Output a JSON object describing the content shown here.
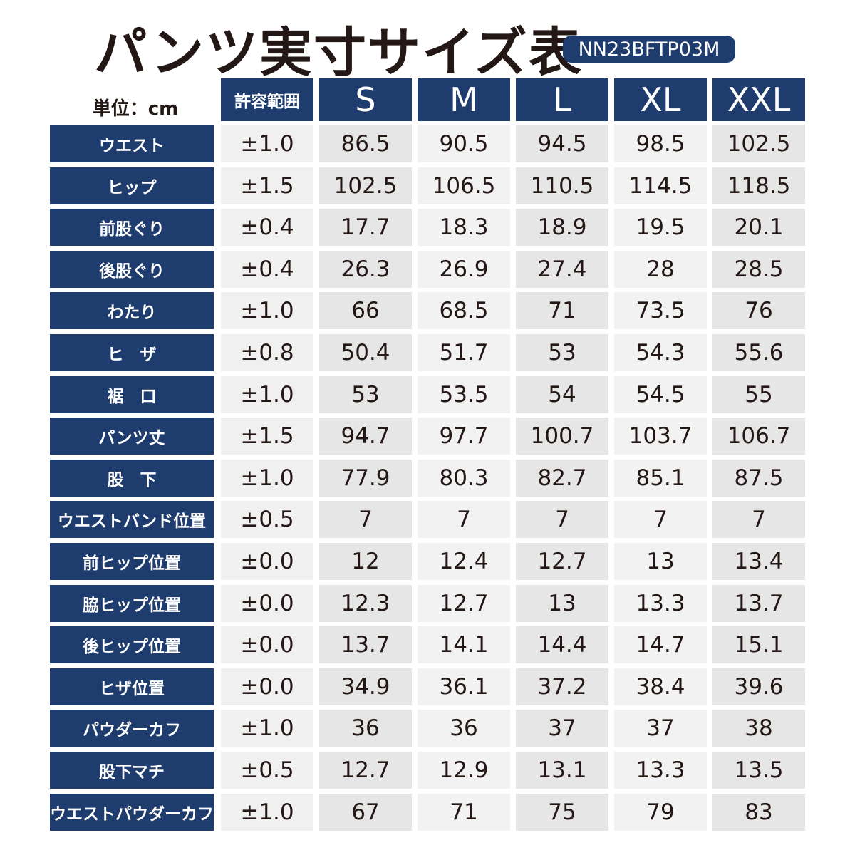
{
  "header": {
    "title": "パンツ実寸サイズ表",
    "code": "NN23BFTP03M",
    "unit": "単位：cm"
  },
  "table": {
    "tolerance_header": "許容範囲",
    "sizes": [
      "S",
      "M",
      "L",
      "XL",
      "XXL"
    ],
    "rows": [
      {
        "label": "ウエスト",
        "tolerance": "±1.0",
        "values": [
          "86.5",
          "90.5",
          "94.5",
          "98.5",
          "102.5"
        ]
      },
      {
        "label": "ヒップ",
        "tolerance": "±1.5",
        "values": [
          "102.5",
          "106.5",
          "110.5",
          "114.5",
          "118.5"
        ]
      },
      {
        "label": "前股ぐり",
        "tolerance": "±0.4",
        "values": [
          "17.7",
          "18.3",
          "18.9",
          "19.5",
          "20.1"
        ]
      },
      {
        "label": "後股ぐり",
        "tolerance": "±0.4",
        "values": [
          "26.3",
          "26.9",
          "27.4",
          "28",
          "28.5"
        ]
      },
      {
        "label": "わたり",
        "tolerance": "±1.0",
        "values": [
          "66",
          "68.5",
          "71",
          "73.5",
          "76"
        ]
      },
      {
        "label": "ヒ　ザ",
        "tolerance": "±0.8",
        "values": [
          "50.4",
          "51.7",
          "53",
          "54.3",
          "55.6"
        ]
      },
      {
        "label": "裾　口",
        "tolerance": "±1.0",
        "values": [
          "53",
          "53.5",
          "54",
          "54.5",
          "55"
        ]
      },
      {
        "label": "パンツ丈",
        "tolerance": "±1.5",
        "values": [
          "94.7",
          "97.7",
          "100.7",
          "103.7",
          "106.7"
        ]
      },
      {
        "label": "股　下",
        "tolerance": "±1.0",
        "values": [
          "77.9",
          "80.3",
          "82.7",
          "85.1",
          "87.5"
        ]
      },
      {
        "label": "ウエストバンド位置",
        "tolerance": "±0.5",
        "values": [
          "7",
          "7",
          "7",
          "7",
          "7"
        ]
      },
      {
        "label": "前ヒップ位置",
        "tolerance": "±0.0",
        "values": [
          "12",
          "12.4",
          "12.7",
          "13",
          "13.4"
        ]
      },
      {
        "label": "脇ヒップ位置",
        "tolerance": "±0.0",
        "values": [
          "12.3",
          "12.7",
          "13",
          "13.3",
          "13.7"
        ]
      },
      {
        "label": "後ヒップ位置",
        "tolerance": "±0.0",
        "values": [
          "13.7",
          "14.1",
          "14.4",
          "14.7",
          "15.1"
        ]
      },
      {
        "label": "ヒザ位置",
        "tolerance": "±0.0",
        "values": [
          "34.9",
          "36.1",
          "37.2",
          "38.4",
          "39.6"
        ]
      },
      {
        "label": "パウダーカフ",
        "tolerance": "±1.0",
        "values": [
          "36",
          "36",
          "37",
          "37",
          "38"
        ]
      },
      {
        "label": "股下マチ",
        "tolerance": "±0.5",
        "values": [
          "12.7",
          "12.9",
          "13.1",
          "13.3",
          "13.5"
        ]
      },
      {
        "label": "ウエストパウダーカフ",
        "tolerance": "±1.0",
        "values": [
          "67",
          "71",
          "75",
          "79",
          "83"
        ]
      }
    ]
  }
}
